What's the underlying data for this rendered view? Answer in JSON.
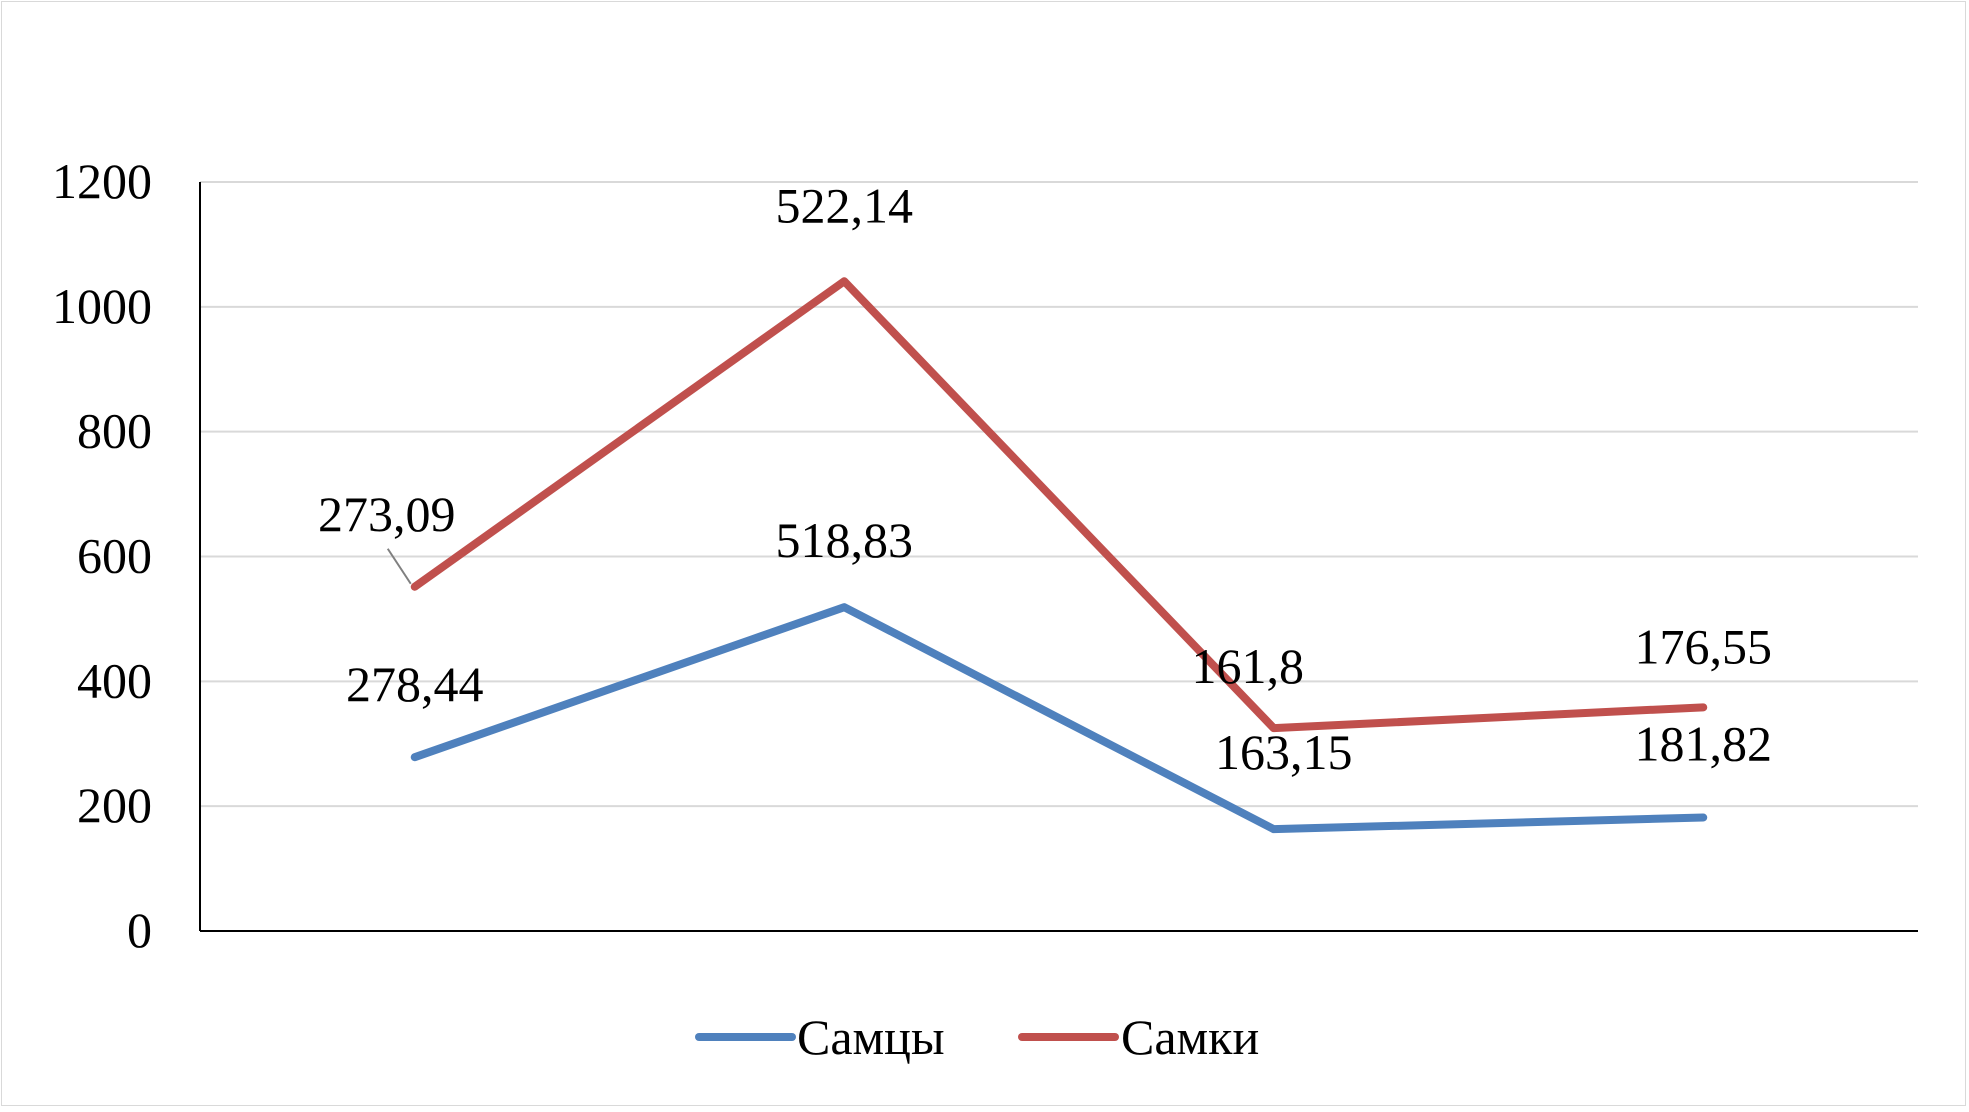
{
  "chart_data": {
    "type": "line",
    "stacked": true,
    "categories": [
      "",
      "",
      "",
      ""
    ],
    "series": [
      {
        "name": "Самцы",
        "values": [
          278.44,
          518.83,
          163.15,
          181.82
        ],
        "labels": [
          "278,44",
          "518,83",
          "163,15",
          "181,82"
        ],
        "color": "#4f81bd"
      },
      {
        "name": "Самки",
        "values": [
          273.09,
          522.14,
          161.8,
          176.55
        ],
        "labels": [
          "273,09",
          "522,14",
          "161,8",
          "176,55"
        ],
        "color": "#c0504d"
      }
    ],
    "yticks": [
      "0",
      "200",
      "400",
      "600",
      "800",
      "1000",
      "1200"
    ],
    "ylim": [
      0,
      1200
    ],
    "grid": true,
    "legend": "bottom",
    "title": "",
    "xlabel": "",
    "ylabel": ""
  }
}
